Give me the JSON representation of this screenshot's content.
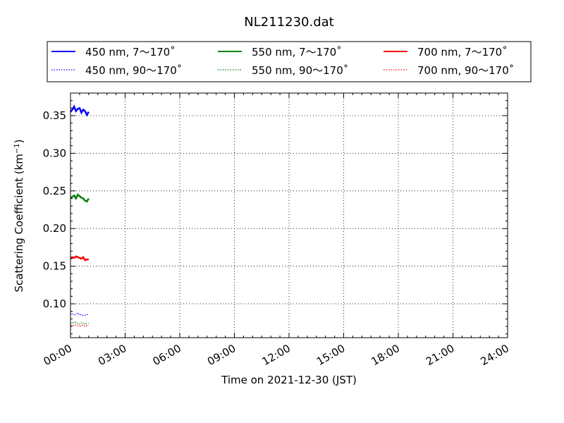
{
  "chart_data": {
    "type": "line",
    "title": "NL211230.dat",
    "xlabel": "Time on 2021-12-30 (JST)",
    "ylabel_main": "Scattering Coefficient (km",
    "ylabel_sup": "−1",
    "ylabel_close": ")",
    "xlim": [
      0,
      24
    ],
    "ylim": [
      0.055,
      0.38
    ],
    "x_ticks": [
      {
        "v": 0,
        "label": "00:00"
      },
      {
        "v": 3,
        "label": "03:00"
      },
      {
        "v": 6,
        "label": "06:00"
      },
      {
        "v": 9,
        "label": "09:00"
      },
      {
        "v": 12,
        "label": "12:00"
      },
      {
        "v": 15,
        "label": "15:00"
      },
      {
        "v": 18,
        "label": "18:00"
      },
      {
        "v": 21,
        "label": "21:00"
      },
      {
        "v": 24,
        "label": "24:00"
      }
    ],
    "y_ticks": [
      {
        "v": 0.1,
        "label": "0.10"
      },
      {
        "v": 0.15,
        "label": "0.15"
      },
      {
        "v": 0.2,
        "label": "0.20"
      },
      {
        "v": 0.25,
        "label": "0.25"
      },
      {
        "v": 0.3,
        "label": "0.30"
      },
      {
        "v": 0.35,
        "label": "0.35"
      }
    ],
    "grid": true,
    "legend_position": "top",
    "series": [
      {
        "name": "450 nm, 7～170˚",
        "color": "#0000ff",
        "style": "solid",
        "x": [
          0.0,
          0.1,
          0.2,
          0.3,
          0.4,
          0.5,
          0.6,
          0.7,
          0.8,
          0.9,
          1.0
        ],
        "y": [
          0.355,
          0.358,
          0.362,
          0.356,
          0.359,
          0.36,
          0.354,
          0.358,
          0.356,
          0.351,
          0.355
        ]
      },
      {
        "name": "550 nm, 7～170˚",
        "color": "#008000",
        "style": "solid",
        "x": [
          0.0,
          0.1,
          0.2,
          0.3,
          0.4,
          0.5,
          0.6,
          0.7,
          0.8,
          0.9,
          1.0
        ],
        "y": [
          0.241,
          0.242,
          0.244,
          0.24,
          0.245,
          0.243,
          0.241,
          0.24,
          0.237,
          0.236,
          0.24
        ]
      },
      {
        "name": "700 nm, 7～170˚",
        "color": "#ff0000",
        "style": "solid",
        "x": [
          0.0,
          0.1,
          0.2,
          0.3,
          0.4,
          0.5,
          0.6,
          0.7,
          0.8,
          0.9,
          1.0
        ],
        "y": [
          0.161,
          0.162,
          0.161,
          0.163,
          0.162,
          0.161,
          0.16,
          0.162,
          0.158,
          0.159,
          0.159
        ]
      },
      {
        "name": "450 nm, 90～170˚",
        "color": "#0000ff",
        "style": "dotted",
        "x": [
          0.0,
          0.1,
          0.2,
          0.3,
          0.4,
          0.5,
          0.6,
          0.7,
          0.8,
          0.9,
          1.0
        ],
        "y": [
          0.086,
          0.087,
          0.085,
          0.086,
          0.088,
          0.085,
          0.086,
          0.084,
          0.085,
          0.086,
          0.085
        ]
      },
      {
        "name": "550 nm, 90～170˚",
        "color": "#008000",
        "style": "dotted",
        "x": [
          0.0,
          0.1,
          0.2,
          0.3,
          0.4,
          0.5,
          0.6,
          0.7,
          0.8,
          0.9,
          1.0
        ],
        "y": [
          0.075,
          0.074,
          0.076,
          0.075,
          0.074,
          0.073,
          0.075,
          0.074,
          0.073,
          0.074,
          0.074
        ]
      },
      {
        "name": "700 nm, 90～170˚",
        "color": "#ff0000",
        "style": "dotted",
        "x": [
          0.0,
          0.1,
          0.2,
          0.3,
          0.4,
          0.5,
          0.6,
          0.7,
          0.8,
          0.9,
          1.0
        ],
        "y": [
          0.071,
          0.072,
          0.071,
          0.072,
          0.071,
          0.07,
          0.071,
          0.072,
          0.07,
          0.071,
          0.071
        ]
      }
    ],
    "legend_order": [
      0,
      1,
      2,
      3,
      4,
      5
    ]
  }
}
